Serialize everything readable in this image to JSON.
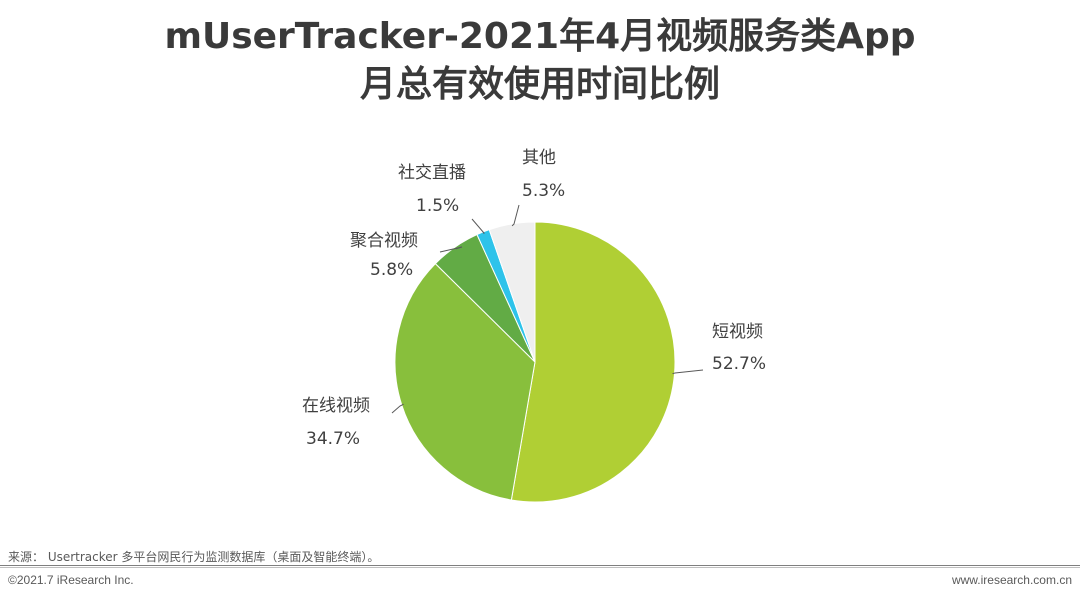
{
  "header": {
    "title_line1": "mUserTracker-2021年4月视频服务类App",
    "title_line2": "月总有效使用时间比例"
  },
  "chart_data": {
    "type": "pie",
    "title": "mUserTracker-2021年4月视频服务类App月总有效使用时间比例",
    "start_angle": "12 o'clock",
    "direction": "clockwise",
    "slices": [
      {
        "label": "短视频",
        "value": 52.7,
        "value_label": "52.7%",
        "color": "#b0cf34"
      },
      {
        "label": "在线视频",
        "value": 34.7,
        "value_label": "34.7%",
        "color": "#88bf3c"
      },
      {
        "label": "聚合视频",
        "value": 5.8,
        "value_label": "5.8%",
        "color": "#62ab45"
      },
      {
        "label": "社交直播",
        "value": 1.5,
        "value_label": "1.5%",
        "color": "#2ec3ea"
      },
      {
        "label": "其他",
        "value": 5.3,
        "value_label": "5.3%",
        "color": "#efefef"
      }
    ]
  },
  "footer": {
    "source": "来源： Usertracker 多平台网民行为监测数据库（桌面及智能终端）。",
    "copyright": "©2021.7 iResearch Inc.",
    "website": "www.iresearch.com.cn"
  }
}
